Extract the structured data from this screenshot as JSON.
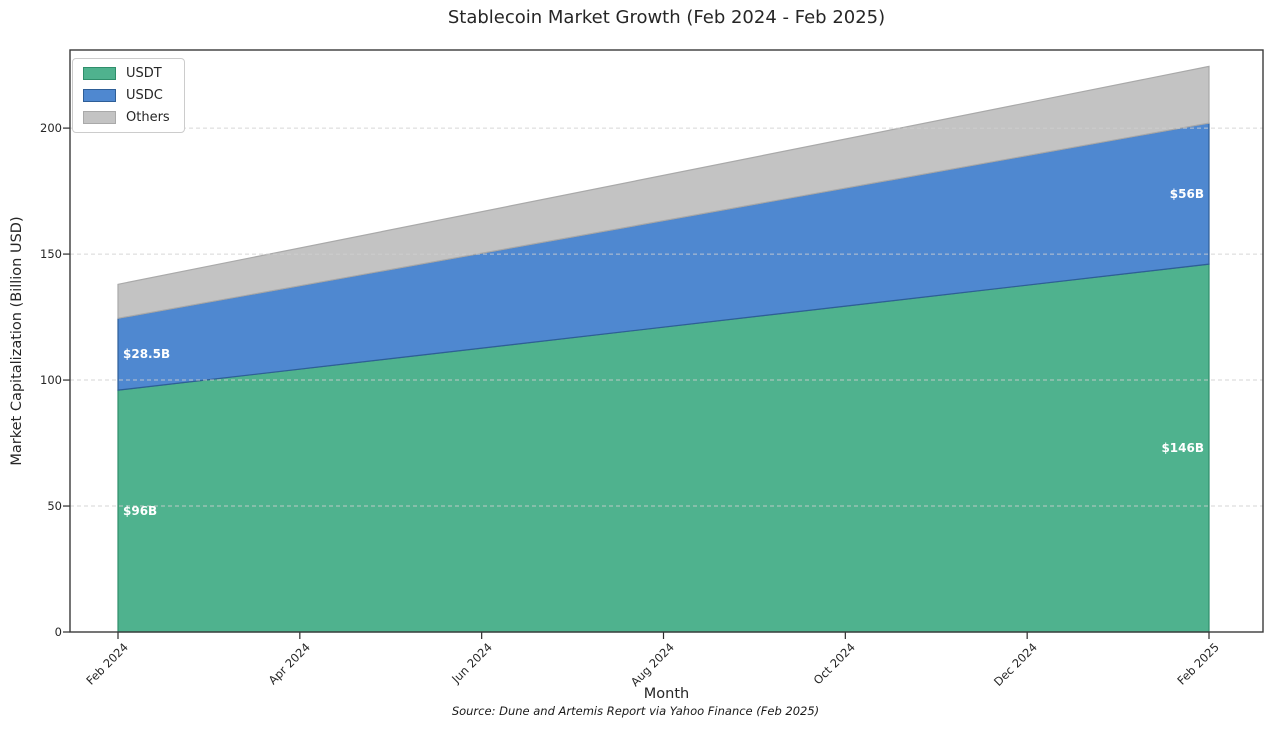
{
  "chart_data": {
    "type": "area",
    "stacked": true,
    "title": "Stablecoin Market Growth (Feb 2024 - Feb 2025)",
    "xlabel": "Month",
    "ylabel": "Market Capitalization (Billion USD)",
    "source_note": "Source: Dune and Artemis Report via Yahoo Finance (Feb 2025)",
    "x": [
      "Feb 2024",
      "Feb 2025"
    ],
    "x_ticks": [
      "Feb 2024",
      "Apr 2024",
      "Jun 2024",
      "Aug 2024",
      "Oct 2024",
      "Dec 2024",
      "Feb 2025"
    ],
    "y_ticks": [
      0,
      50,
      100,
      150,
      200
    ],
    "ylim": [
      0,
      231
    ],
    "grid": "horizontal-dashed",
    "legend_position": "upper-left",
    "series": [
      {
        "name": "USDT",
        "color": "#4fb28e",
        "edge": "#2f8e6b",
        "values": [
          96,
          146
        ]
      },
      {
        "name": "USDC",
        "color": "#4f88d0",
        "edge": "#2e5e97",
        "values": [
          28.5,
          56
        ]
      },
      {
        "name": "Others",
        "color": "#c3c3c3",
        "edge": "#a9a9a9",
        "values": [
          13.5,
          22.5
        ]
      }
    ],
    "totals": [
      138,
      224.5
    ],
    "annotations": [
      {
        "text": "$96B",
        "series": "USDT",
        "point": 0,
        "align": "left"
      },
      {
        "text": "$28.5B",
        "series": "USDC",
        "point": 0,
        "align": "left"
      },
      {
        "text": "$146B",
        "series": "USDT",
        "point": 1,
        "align": "right"
      },
      {
        "text": "$56B",
        "series": "USDC",
        "point": 1,
        "align": "right"
      }
    ],
    "annotation_color": "#ffffff",
    "colors": {
      "plot_border": "#3a3a3a",
      "gridline": "#cfcfcf",
      "tick": "#2b2b2b",
      "background": "#ffffff"
    }
  }
}
